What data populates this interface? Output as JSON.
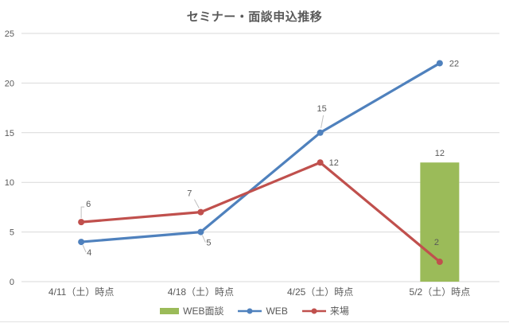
{
  "title": "セミナー・面談申込推移",
  "colors": {
    "grid": "#d9d9d9",
    "axis_text": "#595959",
    "data_label_text": "#595959",
    "leader_line": "#bfbfbf",
    "title_text": "#595959",
    "bottom_border": "#e2e2e2",
    "bar_green": "#9bbb59",
    "line_blue": "#4f81bd",
    "line_red": "#c0504d"
  },
  "chart_data": {
    "type": "combo",
    "title": "セミナー・面談申込推移",
    "categories": [
      "4/11（土）時点",
      "4/18（土）時点",
      "4/25（土）時点",
      "5/2（土）時点"
    ],
    "series": [
      {
        "name": "WEB面談",
        "type": "bar",
        "color": "#9bbb59",
        "values": [
          null,
          null,
          null,
          12
        ]
      },
      {
        "name": "WEB",
        "type": "line",
        "color": "#4f81bd",
        "values": [
          4,
          5,
          15,
          22
        ]
      },
      {
        "name": "来場",
        "type": "line",
        "color": "#c0504d",
        "values": [
          6,
          7,
          12,
          2
        ]
      }
    ],
    "xlabel": "",
    "ylabel": "",
    "ylim": [
      0,
      25
    ],
    "yticks": [
      0,
      5,
      10,
      15,
      20,
      25
    ],
    "grid": true,
    "data_labels": true,
    "legend_position": "bottom"
  }
}
